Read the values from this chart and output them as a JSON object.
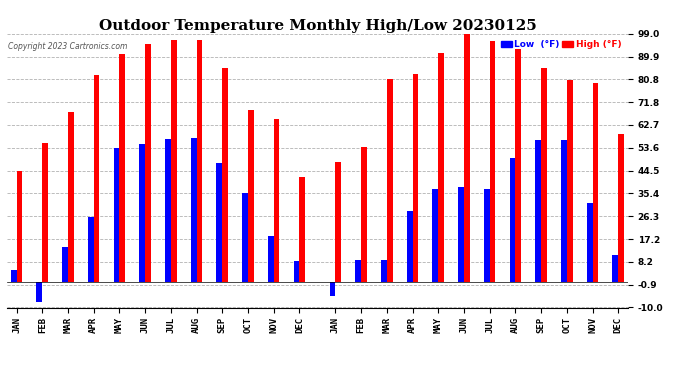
{
  "title": "Outdoor Temperature Monthly High/Low 20230125",
  "copyright": "Copyright 2023 Cartronics.com",
  "legend_low": "Low  (°F)",
  "legend_high": "High (°F)",
  "months_year1": [
    "JAN",
    "FEB",
    "MAR",
    "APR",
    "MAY",
    "JUN",
    "JUL",
    "AUG",
    "SEP",
    "OCT",
    "NOV",
    "DEC"
  ],
  "months_year2": [
    "JAN",
    "FEB",
    "MAR",
    "APR",
    "MAY",
    "JUN",
    "JUL",
    "AUG",
    "SEP",
    "OCT",
    "NOV",
    "DEC"
  ],
  "high_year1": [
    44.5,
    55.5,
    68.0,
    82.5,
    91.0,
    95.0,
    96.5,
    96.5,
    85.5,
    68.5,
    65.0,
    42.0
  ],
  "low_year1": [
    5.0,
    -8.0,
    14.0,
    26.0,
    53.5,
    55.0,
    57.0,
    57.5,
    47.5,
    35.5,
    18.5,
    8.5
  ],
  "high_year2": [
    48.0,
    54.0,
    81.0,
    83.0,
    91.5,
    100.0,
    96.0,
    93.0,
    85.5,
    80.5,
    79.5,
    59.0
  ],
  "low_year2": [
    -5.5,
    9.0,
    9.0,
    28.5,
    37.0,
    38.0,
    37.0,
    49.5,
    56.5,
    56.5,
    31.5,
    11.0
  ],
  "ylim": [
    -10.0,
    99.0
  ],
  "yticks": [
    99.0,
    89.9,
    80.8,
    71.8,
    62.7,
    53.6,
    44.5,
    35.4,
    26.3,
    17.2,
    8.2,
    -0.9,
    -10.0
  ],
  "color_high": "#ff0000",
  "color_low": "#0000ff",
  "background_color": "#ffffff",
  "grid_color": "#aaaaaa",
  "title_fontsize": 11,
  "tick_fontsize": 6.5
}
